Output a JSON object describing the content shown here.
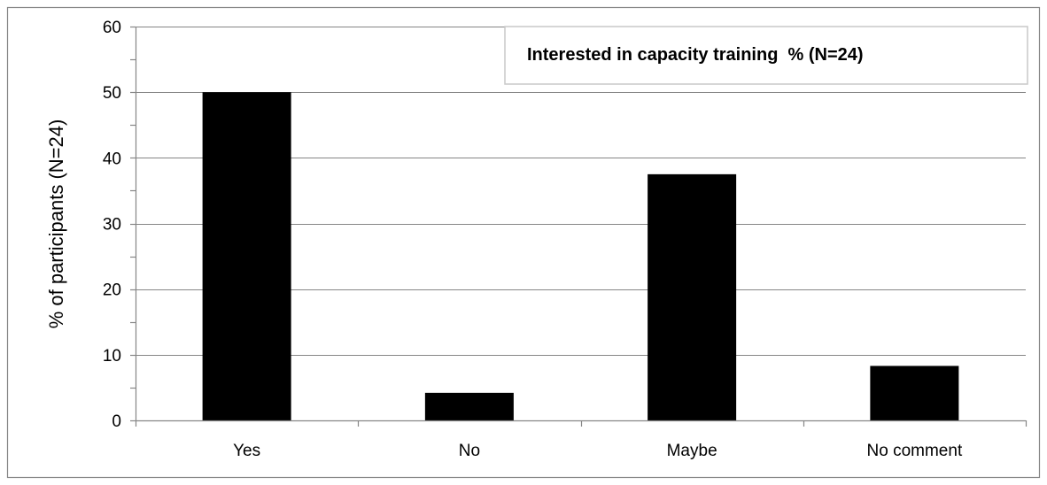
{
  "chart_data": {
    "type": "bar",
    "categories": [
      "Yes",
      "No",
      "Maybe",
      "No comment"
    ],
    "series": [
      {
        "name": "Interested in capacity training  % (N=24)",
        "values": [
          50,
          4.2,
          37.5,
          8.3
        ]
      }
    ],
    "title": "",
    "xlabel": "",
    "ylabel": "% of participants (N=24)",
    "ylim": [
      0,
      60
    ],
    "yticks": [
      0,
      10,
      20,
      30,
      40,
      50,
      60
    ],
    "grid": true,
    "legend_position": "top-right",
    "bar_color": "#000000",
    "grid_color": "#868686",
    "border_color": "#868686"
  }
}
